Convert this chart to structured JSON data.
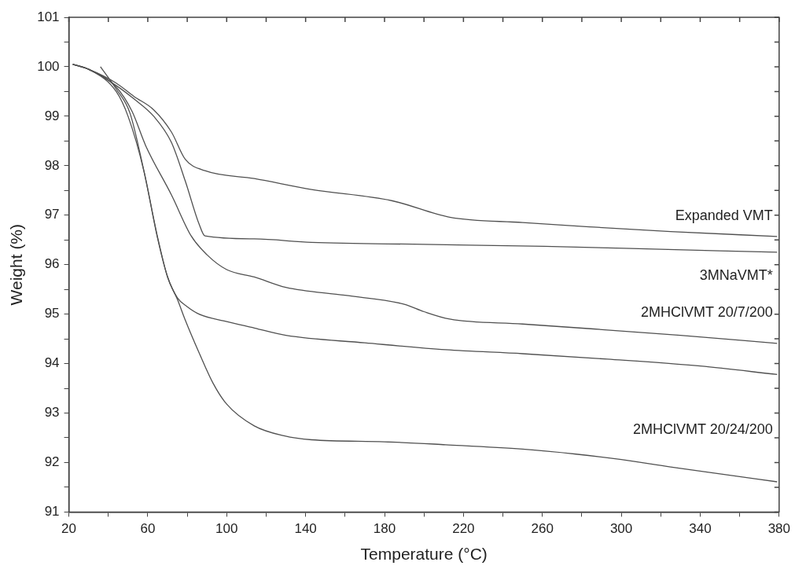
{
  "chart_data": {
    "type": "line",
    "xlabel": "Temperature (°C)",
    "ylabel": "Weight (%)",
    "xlim": [
      20,
      380
    ],
    "ylim": [
      91,
      101
    ],
    "xticks": [
      20,
      {
        "value": 40,
        "label": null
      },
      60,
      {
        "value": 80,
        "label": null
      },
      100,
      {
        "value": 120,
        "label": null
      },
      140,
      {
        "value": 160,
        "label": null
      },
      180,
      {
        "value": 200,
        "label": null
      },
      220,
      {
        "value": 240,
        "label": null
      },
      260,
      {
        "value": 280,
        "label": null
      },
      300,
      {
        "value": 320,
        "label": null
      },
      340,
      {
        "value": 360,
        "label": null
      },
      380
    ],
    "yticks": [
      91,
      {
        "value": 91.5,
        "label": null
      },
      92,
      {
        "value": 92.5,
        "label": null
      },
      93,
      {
        "value": 93.5,
        "label": null
      },
      94,
      {
        "value": 94.5,
        "label": null
      },
      95,
      {
        "value": 95.5,
        "label": null
      },
      96,
      {
        "value": 96.5,
        "label": null
      },
      97,
      {
        "value": 97.5,
        "label": null
      },
      98,
      {
        "value": 98.5,
        "label": null
      },
      99,
      {
        "value": 99.5,
        "label": null
      },
      100,
      {
        "value": 100.5,
        "label": null
      },
      101
    ],
    "grid": false,
    "legend": "right",
    "marker": "none",
    "line_style": "solid",
    "series": [
      {
        "name": "Expanded VMT",
        "color": "#505050",
        "x": [
          22,
          30,
          44,
          53,
          63,
          72,
          79,
          89,
          114,
          143,
          184,
          213,
          250,
          286,
          325,
          379
        ],
        "values": [
          100.05,
          99.95,
          99.67,
          99.4,
          99.13,
          98.68,
          98.13,
          97.9,
          97.74,
          97.52,
          97.29,
          96.96,
          96.85,
          96.76,
          96.67,
          96.57
        ]
      },
      {
        "name": "3MNaVMT*",
        "color": "#505050",
        "x": [
          22,
          30,
          44,
          53,
          63,
          72,
          79,
          86,
          89,
          114,
          143,
          200,
          261,
          320,
          379
        ],
        "values": [
          100.05,
          99.95,
          99.62,
          99.35,
          99.0,
          98.47,
          97.69,
          96.82,
          96.58,
          96.52,
          96.45,
          96.41,
          96.37,
          96.31,
          96.25
        ]
      },
      {
        "name": "2MHClVMT 20/7/200",
        "color": "#505050",
        "x": [
          22,
          30,
          44,
          52,
          59,
          72,
          82,
          90,
          100,
          114,
          130,
          160,
          190,
          200,
          213,
          250,
          286,
          330,
          379
        ],
        "values": [
          100.05,
          99.95,
          99.59,
          99.1,
          98.4,
          97.41,
          96.58,
          96.2,
          95.9,
          95.75,
          95.54,
          95.38,
          95.2,
          95.05,
          94.9,
          94.8,
          94.7,
          94.57,
          94.41
        ]
      },
      {
        "color": "#505050",
        "x": [
          22,
          30,
          44,
          50,
          58,
          65,
          70,
          75,
          80,
          86,
          100,
          114,
          130,
          170,
          211,
          250,
          293,
          340,
          379
        ],
        "values": [
          100.05,
          99.95,
          99.5,
          99.0,
          97.9,
          96.53,
          95.76,
          95.33,
          95.15,
          95.0,
          94.85,
          94.72,
          94.57,
          94.42,
          94.28,
          94.2,
          94.09,
          93.95,
          93.78
        ]
      },
      {
        "name": "2MHClVMT 20/24/200",
        "color": "#505050",
        "x": [
          36,
          44,
          51,
          58,
          65,
          70,
          75,
          79,
          86,
          93,
          100,
          114,
          129,
          143,
          180,
          211,
          250,
          277,
          300,
          325,
          350,
          379
        ],
        "values": [
          100.0,
          99.55,
          99.06,
          97.9,
          96.55,
          95.75,
          95.3,
          94.88,
          94.22,
          93.61,
          93.18,
          92.74,
          92.54,
          92.46,
          92.42,
          92.36,
          92.27,
          92.17,
          92.06,
          91.91,
          91.77,
          91.61
        ]
      }
    ]
  }
}
